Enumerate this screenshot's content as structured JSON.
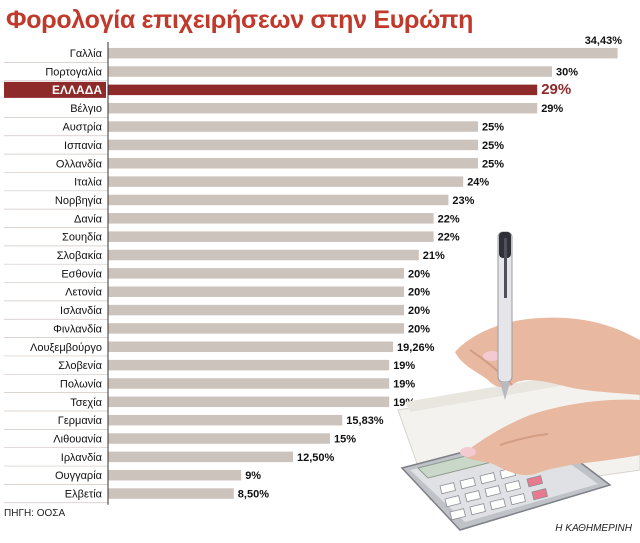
{
  "chart_data": {
    "type": "bar",
    "orientation": "horizontal",
    "title": "Φορολογία επιχειρήσεων στην Ευρώπη",
    "categories": [
      "Γαλλία",
      "Πορτογαλία",
      "ΕΛΛΑΔΑ",
      "Βέλγιο",
      "Αυστρία",
      "Ισπανία",
      "Ολλανδία",
      "Ιταλία",
      "Νορβηγία",
      "Δανία",
      "Σουηδία",
      "Σλοβακία",
      "Εσθονία",
      "Λετονία",
      "Ισλανδία",
      "Φινλανδία",
      "Λουξεμβούργο",
      "Σλοβενία",
      "Πολωνία",
      "Τσεχία",
      "Γερμανία",
      "Λιθουανία",
      "Ιρλανδία",
      "Ουγγαρία",
      "Ελβετία"
    ],
    "values": [
      34.43,
      30,
      29,
      29,
      25,
      25,
      25,
      24,
      23,
      22,
      22,
      21,
      20,
      20,
      20,
      20,
      19.26,
      19,
      19,
      19,
      15.83,
      15,
      12.5,
      9,
      8.5
    ],
    "value_labels": [
      "34,43%",
      "30%",
      "29%",
      "29%",
      "25%",
      "25%",
      "25%",
      "24%",
      "23%",
      "22%",
      "22%",
      "21%",
      "20%",
      "20%",
      "20%",
      "20%",
      "19,26%",
      "19%",
      "19%",
      "19%",
      "15,83%",
      "15%",
      "12,50%",
      "9%",
      "8,50%"
    ],
    "highlight": "ΕΛΛΑΔΑ",
    "xlim": [
      0,
      35
    ],
    "grid": false,
    "colors": {
      "bar": "#cdc3bd",
      "highlight": "#8e2a2a",
      "title": "#c0392b",
      "label": "#111111"
    }
  },
  "footer": {
    "source": "ΠΗΓΗ: ΟΟΣΑ",
    "publisher": "Η ΚΑΘΗΜΕΡΙΝΗ"
  }
}
